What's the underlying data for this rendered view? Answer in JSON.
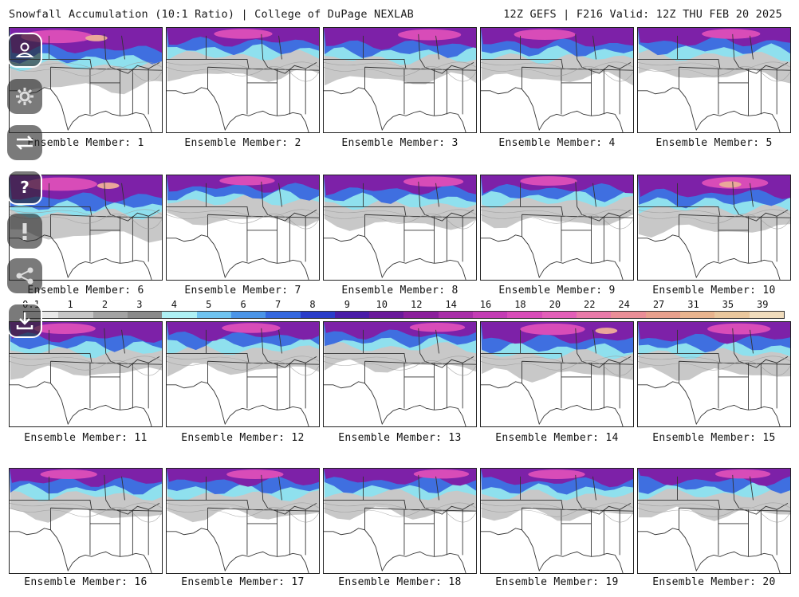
{
  "header": {
    "left_title": "Snowfall Accumulation (10:1 Ratio) | College of DuPage NEXLAB",
    "right_title": "12Z GEFS | F216 Valid: 12Z THU FEB 20 2025"
  },
  "panels": [
    {
      "caption": "Ensemble Member: 1",
      "snow_level": 0.88
    },
    {
      "caption": "Ensemble Member: 2",
      "snow_level": 0.45
    },
    {
      "caption": "Ensemble Member: 3",
      "snow_level": 0.6
    },
    {
      "caption": "Ensemble Member: 4",
      "snow_level": 0.55
    },
    {
      "caption": "Ensemble Member: 5",
      "snow_level": 0.45
    },
    {
      "caption": "Ensemble Member: 6",
      "snow_level": 0.9
    },
    {
      "caption": "Ensemble Member: 7",
      "snow_level": 0.35
    },
    {
      "caption": "Ensemble Member: 8",
      "snow_level": 0.5
    },
    {
      "caption": "Ensemble Member: 9",
      "snow_level": 0.4
    },
    {
      "caption": "Ensemble Member: 10",
      "snow_level": 0.7
    },
    {
      "caption": "Ensemble Member: 11",
      "snow_level": 0.55
    },
    {
      "caption": "Ensemble Member: 12",
      "snow_level": 0.45
    },
    {
      "caption": "Ensemble Member: 13",
      "snow_level": 0.35
    },
    {
      "caption": "Ensemble Member: 14",
      "snow_level": 0.65
    },
    {
      "caption": "Ensemble Member: 15",
      "snow_level": 0.6
    },
    {
      "caption": "Ensemble Member: 16",
      "snow_level": 0.4
    },
    {
      "caption": "Ensemble Member: 17",
      "snow_level": 0.4
    },
    {
      "caption": "Ensemble Member: 18",
      "snow_level": 0.35
    },
    {
      "caption": "Ensemble Member: 19",
      "snow_level": 0.4
    },
    {
      "caption": "Ensemble Member: 20",
      "snow_level": 0.35
    }
  ],
  "legend": {
    "labels": [
      "0.1",
      "1",
      "2",
      "3",
      "4",
      "5",
      "6",
      "7",
      "8",
      "9",
      "10",
      "12",
      "14",
      "16",
      "18",
      "20",
      "22",
      "24",
      "27",
      "31",
      "35",
      "39"
    ],
    "colors": [
      "#e8e8e8",
      "#c6c6c6",
      "#a3a3a3",
      "#8a8a8a",
      "#aef0f4",
      "#6ec3f0",
      "#4b95e8",
      "#3467df",
      "#2a3cc9",
      "#4a1ca8",
      "#6a1a9a",
      "#8c1f9c",
      "#a92ea8",
      "#c43cb4",
      "#d84cb8",
      "#e35fb8",
      "#e97aa9",
      "#ea8e97",
      "#e8a08d",
      "#e9b48e",
      "#eac79d",
      "#f0dcbc"
    ]
  },
  "tools": [
    {
      "name": "profile-icon",
      "icon": "person-pin-icon"
    },
    {
      "name": "settings-icon",
      "icon": "gear-icon"
    },
    {
      "name": "swap-icon",
      "icon": "arrows-icon"
    },
    {
      "name": "help-icon",
      "icon": "question-icon"
    },
    {
      "name": "alert-icon",
      "icon": "exclamation-icon"
    },
    {
      "name": "share-icon",
      "icon": "share-icon"
    },
    {
      "name": "download-icon",
      "icon": "download-icon"
    }
  ]
}
